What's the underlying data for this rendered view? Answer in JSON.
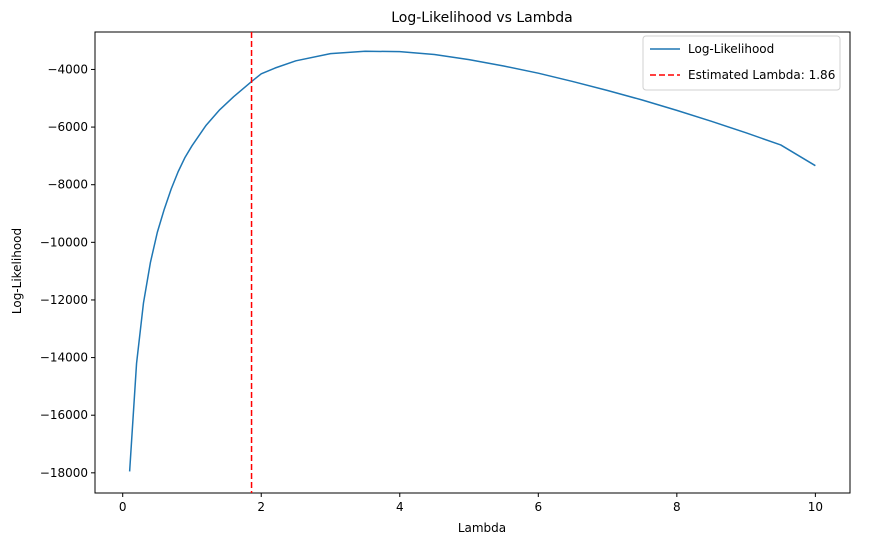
{
  "chart_data": {
    "type": "line",
    "title": "Log-Likelihood vs Lambda",
    "xlabel": "Lambda",
    "ylabel": "Log-Likelihood",
    "xlim": [
      -0.4,
      10.5
    ],
    "ylim": [
      -18700,
      -2700
    ],
    "grid": false,
    "legend_position": "top-right",
    "xticks": [
      0,
      2,
      4,
      6,
      8,
      10
    ],
    "yticks": [
      -18000,
      -16000,
      -14000,
      -12000,
      -10000,
      -8000,
      -6000,
      -4000
    ],
    "series": [
      {
        "name": "Log-Likelihood",
        "style": "solid",
        "color": "#1f77b4",
        "x": [
          0.1,
          0.2,
          0.3,
          0.4,
          0.5,
          0.6,
          0.7,
          0.8,
          0.9,
          1.0,
          1.2,
          1.4,
          1.6,
          1.86,
          2.0,
          2.2,
          2.5,
          3.0,
          3.5,
          4.0,
          4.5,
          5.0,
          5.5,
          6.0,
          6.5,
          7.0,
          7.5,
          8.0,
          8.5,
          9.0,
          9.5,
          10.0
        ],
        "y": [
          -17950,
          -14200,
          -12100,
          -10700,
          -9650,
          -8850,
          -8150,
          -7550,
          -7050,
          -6650,
          -5950,
          -5400,
          -4950,
          -4420,
          -4150,
          -3950,
          -3700,
          -3450,
          -3370,
          -3380,
          -3480,
          -3660,
          -3880,
          -4130,
          -4420,
          -4730,
          -5060,
          -5420,
          -5800,
          -6200,
          -6620,
          -7340
        ]
      },
      {
        "name": "Estimated Lambda: 1.86",
        "style": "dashed",
        "color": "#ff0000",
        "vline_x": 1.86
      }
    ]
  }
}
